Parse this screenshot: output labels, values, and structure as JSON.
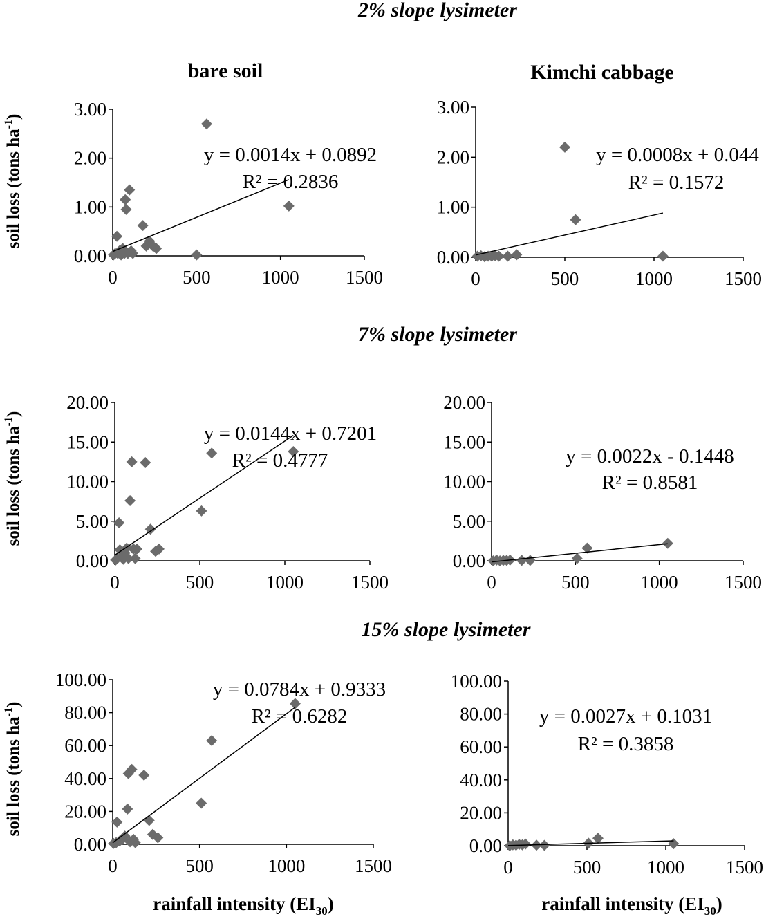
{
  "figure": {
    "section_titles": [
      "2% slope lysimeter",
      "7% slope lysimeter",
      "15% slope lysimeter"
    ],
    "column_titles": [
      "bare soil",
      "Kimchi cabbage"
    ],
    "y_axis_label": {
      "text": "soil loss (tons ha",
      "sup": "-1",
      "suffix": ")"
    },
    "x_axis_label": {
      "text": "rainfall intensity (EI",
      "sub": "30",
      "suffix": ")"
    },
    "marker_color": "#6b6b6b"
  },
  "chart_data": [
    {
      "type": "scatter",
      "slope": "2%",
      "treatment": "bare soil",
      "xlim": [
        0,
        1500
      ],
      "ylim": [
        0,
        3
      ],
      "x_ticks": [
        "0",
        "500",
        "1000",
        "1500"
      ],
      "y_ticks": [
        "0.00",
        "1.00",
        "2.00",
        "3.00"
      ],
      "points": [
        [
          5,
          0.02
        ],
        [
          15,
          0.05
        ],
        [
          25,
          0.4
        ],
        [
          30,
          0.05
        ],
        [
          40,
          0.1
        ],
        [
          50,
          0.02
        ],
        [
          60,
          0.15
        ],
        [
          70,
          0.05
        ],
        [
          75,
          1.15
        ],
        [
          80,
          0.95
        ],
        [
          90,
          0.05
        ],
        [
          100,
          1.35
        ],
        [
          110,
          0.1
        ],
        [
          120,
          0.05
        ],
        [
          180,
          0.62
        ],
        [
          200,
          0.2
        ],
        [
          220,
          0.3
        ],
        [
          240,
          0.2
        ],
        [
          260,
          0.15
        ],
        [
          500,
          0.02
        ],
        [
          560,
          2.7
        ],
        [
          1050,
          1.02
        ]
      ],
      "trendline": {
        "slope": 0.0014,
        "intercept": 0.0892,
        "x_range": [
          0,
          1050
        ]
      },
      "equation": "y = 0.0014x + 0.0892",
      "r2": "R² = 0.2836"
    },
    {
      "type": "scatter",
      "slope": "2%",
      "treatment": "Kimchi cabbage",
      "xlim": [
        0,
        1500
      ],
      "ylim": [
        0,
        3
      ],
      "x_ticks": [
        "0",
        "500",
        "1000",
        "1500"
      ],
      "y_ticks": [
        "0.00",
        "1.00",
        "2.00",
        "3.00"
      ],
      "points": [
        [
          10,
          0.02
        ],
        [
          30,
          0.03
        ],
        [
          50,
          0.01
        ],
        [
          70,
          0.02
        ],
        [
          90,
          0.02
        ],
        [
          110,
          0.03
        ],
        [
          130,
          0.02
        ],
        [
          180,
          0.02
        ],
        [
          230,
          0.05
        ],
        [
          500,
          2.2
        ],
        [
          560,
          0.75
        ],
        [
          1050,
          0.02
        ]
      ],
      "trendline": {
        "slope": 0.0008,
        "intercept": 0.044,
        "x_range": [
          0,
          1050
        ]
      },
      "equation": "y = 0.0008x + 0.044",
      "r2": "R² = 0.1572"
    },
    {
      "type": "scatter",
      "slope": "7%",
      "treatment": "bare soil",
      "xlim": [
        0,
        1500
      ],
      "ylim": [
        0,
        20
      ],
      "x_ticks": [
        "0",
        "500",
        "1000",
        "1500"
      ],
      "y_ticks": [
        "0.00",
        "5.00",
        "10.00",
        "15.00",
        "20.00"
      ],
      "points": [
        [
          5,
          0.1
        ],
        [
          15,
          0.3
        ],
        [
          25,
          4.8
        ],
        [
          30,
          1.4
        ],
        [
          40,
          0.5
        ],
        [
          50,
          0.2
        ],
        [
          60,
          1.0
        ],
        [
          70,
          1.6
        ],
        [
          80,
          0.3
        ],
        [
          90,
          7.6
        ],
        [
          100,
          12.5
        ],
        [
          110,
          1.5
        ],
        [
          120,
          0.3
        ],
        [
          130,
          1.5
        ],
        [
          180,
          12.4
        ],
        [
          210,
          4.0
        ],
        [
          240,
          1.2
        ],
        [
          260,
          1.5
        ],
        [
          510,
          6.3
        ],
        [
          570,
          13.6
        ],
        [
          1050,
          13.8
        ]
      ],
      "trendline": {
        "slope": 0.0144,
        "intercept": 0.7201,
        "x_range": [
          0,
          1050
        ]
      },
      "equation": "y = 0.0144x + 0.7201",
      "r2": "R² = 0.4777"
    },
    {
      "type": "scatter",
      "slope": "7%",
      "treatment": "Kimchi cabbage",
      "xlim": [
        0,
        1500
      ],
      "ylim": [
        0,
        20
      ],
      "x_ticks": [
        "0",
        "500",
        "1000",
        "1500"
      ],
      "y_ticks": [
        "0.00",
        "5.00",
        "10.00",
        "15.00",
        "20.00"
      ],
      "points": [
        [
          10,
          0.0
        ],
        [
          30,
          0.1
        ],
        [
          50,
          0.0
        ],
        [
          70,
          0.05
        ],
        [
          90,
          0.05
        ],
        [
          110,
          0.1
        ],
        [
          180,
          0.05
        ],
        [
          230,
          0.05
        ],
        [
          510,
          0.3
        ],
        [
          570,
          1.6
        ],
        [
          1050,
          2.2
        ]
      ],
      "trendline": {
        "slope": 0.0022,
        "intercept": -0.1448,
        "x_range": [
          0,
          1050
        ]
      },
      "equation": "y = 0.0022x - 0.1448",
      "r2": "R² = 0.8581"
    },
    {
      "type": "scatter",
      "slope": "15%",
      "treatment": "bare soil",
      "xlim": [
        0,
        1500
      ],
      "ylim": [
        0,
        100
      ],
      "x_ticks": [
        "0",
        "500",
        "1000",
        "1500"
      ],
      "y_ticks": [
        "0.00",
        "20.00",
        "40.00",
        "60.00",
        "80.00",
        "100.00"
      ],
      "points": [
        [
          5,
          0.5
        ],
        [
          20,
          1.0
        ],
        [
          25,
          13.5
        ],
        [
          40,
          2.0
        ],
        [
          55,
          3.0
        ],
        [
          70,
          5.0
        ],
        [
          85,
          21.5
        ],
        [
          90,
          43.0
        ],
        [
          100,
          1.5
        ],
        [
          110,
          45.5
        ],
        [
          120,
          3.0
        ],
        [
          130,
          1.0
        ],
        [
          180,
          42.0
        ],
        [
          210,
          14.5
        ],
        [
          230,
          6.0
        ],
        [
          260,
          4.0
        ],
        [
          510,
          25.0
        ],
        [
          570,
          63.0
        ],
        [
          1050,
          85.5
        ]
      ],
      "trendline": {
        "slope": 0.0784,
        "intercept": 0.9333,
        "x_range": [
          0,
          1050
        ]
      },
      "equation": "y = 0.0784x + 0.9333",
      "r2": "R² = 0.6282"
    },
    {
      "type": "scatter",
      "slope": "15%",
      "treatment": "Kimchi cabbage",
      "xlim": [
        0,
        1500
      ],
      "ylim": [
        0,
        100
      ],
      "x_ticks": [
        "0",
        "500",
        "1000",
        "1500"
      ],
      "y_ticks": [
        "0.00",
        "20.00",
        "40.00",
        "60.00",
        "80.00",
        "100.00"
      ],
      "points": [
        [
          10,
          0.0
        ],
        [
          30,
          0.5
        ],
        [
          50,
          0.3
        ],
        [
          70,
          0.8
        ],
        [
          90,
          0.5
        ],
        [
          110,
          1.0
        ],
        [
          180,
          0.3
        ],
        [
          230,
          0.2
        ],
        [
          510,
          1.5
        ],
        [
          570,
          4.5
        ],
        [
          1050,
          1.2
        ]
      ],
      "trendline": {
        "slope": 0.0027,
        "intercept": 0.1031,
        "x_range": [
          0,
          1050
        ]
      },
      "equation": "y = 0.0027x + 0.1031",
      "r2": "R² = 0.3858"
    }
  ]
}
